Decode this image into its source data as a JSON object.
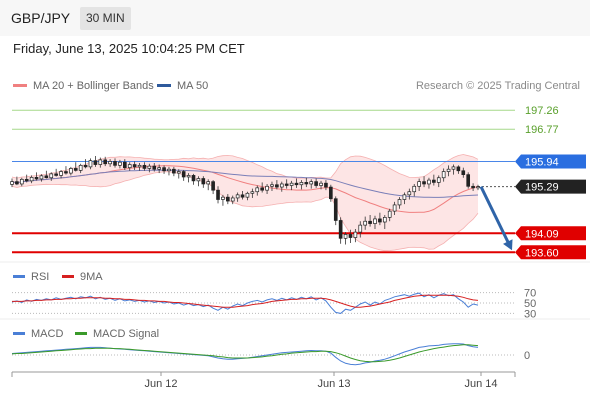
{
  "header": {
    "symbol": "GBP/JPY",
    "timeframe": "30 MIN"
  },
  "datetime": "Friday, June 13, 2025 10:04:25 PM CET",
  "research": "Research © 2025 Trading Central",
  "chart_data": [
    {
      "type": "candlestick",
      "legend": [
        {
          "name": "MA 20 + Bollinger Bands",
          "color": "#f08080"
        },
        {
          "name": "MA 50",
          "color": "#2e5a9c"
        }
      ],
      "y_range": [
        193.35,
        197.6
      ],
      "levels": [
        {
          "value": 197.26,
          "label": "197.26",
          "kind": "target",
          "color": "#5aa02c"
        },
        {
          "value": 196.77,
          "label": "196.77",
          "kind": "target",
          "color": "#5aa02c"
        },
        {
          "value": 195.94,
          "label": "195.94",
          "kind": "pivot",
          "color": "#2a6ee0"
        },
        {
          "value": 195.29,
          "label": "195.29",
          "kind": "last",
          "color": "#222222"
        },
        {
          "value": 194.09,
          "label": "194.09",
          "kind": "support",
          "color": "#e00000"
        },
        {
          "value": 193.6,
          "label": "193.60",
          "kind": "support",
          "color": "#e00000"
        }
      ],
      "x_ticks": [
        "Jun 12",
        "Jun 13",
        "Jun 14"
      ],
      "candles": [
        [
          195.35,
          195.5,
          195.28,
          195.42
        ],
        [
          195.42,
          195.55,
          195.33,
          195.36
        ],
        [
          195.36,
          195.52,
          195.3,
          195.48
        ],
        [
          195.48,
          195.6,
          195.4,
          195.44
        ],
        [
          195.44,
          195.58,
          195.38,
          195.53
        ],
        [
          195.53,
          195.66,
          195.45,
          195.49
        ],
        [
          195.49,
          195.61,
          195.42,
          195.57
        ],
        [
          195.57,
          195.7,
          195.5,
          195.52
        ],
        [
          195.52,
          195.66,
          195.44,
          195.62
        ],
        [
          195.62,
          195.75,
          195.55,
          195.58
        ],
        [
          195.58,
          195.72,
          195.5,
          195.68
        ],
        [
          195.68,
          195.82,
          195.6,
          195.64
        ],
        [
          195.64,
          195.8,
          195.58,
          195.76
        ],
        [
          195.76,
          195.92,
          195.68,
          195.71
        ],
        [
          195.71,
          195.88,
          195.64,
          195.84
        ],
        [
          195.84,
          196.0,
          195.76,
          195.8
        ],
        [
          195.8,
          196.02,
          195.74,
          195.96
        ],
        [
          195.96,
          196.08,
          195.8,
          195.86
        ],
        [
          195.86,
          196.04,
          195.78,
          195.98
        ],
        [
          195.98,
          196.06,
          195.82,
          195.88
        ],
        [
          195.88,
          196.0,
          195.8,
          195.94
        ],
        [
          195.94,
          196.02,
          195.78,
          195.84
        ],
        [
          195.84,
          195.98,
          195.76,
          195.92
        ],
        [
          195.92,
          196.0,
          195.72,
          195.78
        ],
        [
          195.78,
          195.92,
          195.7,
          195.86
        ],
        [
          195.86,
          195.94,
          195.72,
          195.8
        ],
        [
          195.8,
          195.9,
          195.7,
          195.84
        ],
        [
          195.84,
          195.92,
          195.7,
          195.76
        ],
        [
          195.76,
          195.88,
          195.66,
          195.82
        ],
        [
          195.82,
          195.9,
          195.68,
          195.74
        ],
        [
          195.74,
          195.86,
          195.64,
          195.78
        ],
        [
          195.78,
          195.84,
          195.62,
          195.7
        ],
        [
          195.7,
          195.8,
          195.58,
          195.74
        ],
        [
          195.74,
          195.8,
          195.56,
          195.64
        ],
        [
          195.64,
          195.74,
          195.5,
          195.68
        ],
        [
          195.68,
          195.72,
          195.44,
          195.54
        ],
        [
          195.54,
          195.64,
          195.4,
          195.58
        ],
        [
          195.58,
          195.62,
          195.34,
          195.44
        ],
        [
          195.44,
          195.56,
          195.3,
          195.5
        ],
        [
          195.5,
          195.56,
          195.26,
          195.36
        ],
        [
          195.36,
          195.48,
          195.2,
          195.42
        ],
        [
          195.42,
          195.46,
          195.1,
          195.2
        ],
        [
          195.2,
          195.3,
          194.86,
          194.96
        ],
        [
          194.96,
          195.08,
          194.8,
          195.02
        ],
        [
          195.02,
          195.1,
          194.84,
          194.92
        ],
        [
          194.92,
          195.06,
          194.84,
          195.0
        ],
        [
          195.0,
          195.14,
          194.9,
          195.08
        ],
        [
          195.08,
          195.18,
          194.96,
          195.02
        ],
        [
          195.02,
          195.16,
          194.94,
          195.12
        ],
        [
          195.12,
          195.24,
          195.0,
          195.16
        ],
        [
          195.16,
          195.32,
          195.06,
          195.26
        ],
        [
          195.26,
          195.4,
          195.14,
          195.2
        ],
        [
          195.2,
          195.36,
          195.1,
          195.3
        ],
        [
          195.3,
          195.42,
          195.18,
          195.34
        ],
        [
          195.34,
          195.46,
          195.22,
          195.28
        ],
        [
          195.28,
          195.42,
          195.16,
          195.36
        ],
        [
          195.36,
          195.48,
          195.24,
          195.32
        ],
        [
          195.32,
          195.44,
          195.2,
          195.38
        ],
        [
          195.38,
          195.5,
          195.26,
          195.34
        ],
        [
          195.34,
          195.46,
          195.22,
          195.4
        ],
        [
          195.4,
          195.52,
          195.28,
          195.36
        ],
        [
          195.36,
          195.48,
          195.24,
          195.42
        ],
        [
          195.42,
          195.5,
          195.26,
          195.32
        ],
        [
          195.32,
          195.44,
          195.22,
          195.38
        ],
        [
          195.38,
          195.46,
          195.2,
          195.28
        ],
        [
          195.28,
          195.34,
          194.9,
          194.98
        ],
        [
          194.98,
          195.04,
          194.3,
          194.42
        ],
        [
          194.42,
          194.5,
          193.82,
          193.96
        ],
        [
          193.96,
          194.12,
          193.8,
          194.06
        ],
        [
          194.06,
          194.18,
          193.84,
          193.98
        ],
        [
          193.98,
          194.2,
          193.86,
          194.12
        ],
        [
          194.12,
          194.4,
          193.98,
          194.3
        ],
        [
          194.3,
          194.52,
          194.18,
          194.4
        ],
        [
          194.4,
          194.56,
          194.26,
          194.34
        ],
        [
          194.34,
          194.54,
          194.2,
          194.46
        ],
        [
          194.46,
          194.62,
          194.3,
          194.38
        ],
        [
          194.38,
          194.56,
          194.2,
          194.5
        ],
        [
          194.5,
          194.72,
          194.4,
          194.66
        ],
        [
          194.66,
          194.9,
          194.56,
          194.82
        ],
        [
          194.82,
          195.02,
          194.72,
          194.96
        ],
        [
          194.96,
          195.14,
          194.84,
          195.08
        ],
        [
          195.08,
          195.24,
          194.96,
          195.16
        ],
        [
          195.16,
          195.36,
          195.04,
          195.3
        ],
        [
          195.3,
          195.5,
          195.18,
          195.42
        ],
        [
          195.42,
          195.56,
          195.28,
          195.36
        ],
        [
          195.36,
          195.52,
          195.24,
          195.46
        ],
        [
          195.46,
          195.6,
          195.32,
          195.4
        ],
        [
          195.4,
          195.58,
          195.28,
          195.52
        ],
        [
          195.52,
          195.76,
          195.42,
          195.68
        ],
        [
          195.68,
          195.84,
          195.56,
          195.74
        ],
        [
          195.74,
          195.86,
          195.6,
          195.8
        ],
        [
          195.8,
          195.84,
          195.62,
          195.7
        ],
        [
          195.7,
          195.78,
          195.52,
          195.6
        ],
        [
          195.6,
          195.66,
          195.24,
          195.3
        ],
        [
          195.3,
          195.38,
          195.18,
          195.26
        ],
        [
          195.26,
          195.34,
          195.2,
          195.29
        ]
      ],
      "forecast": {
        "from": 195.29,
        "to": 193.6
      }
    },
    {
      "type": "line",
      "legend": [
        {
          "name": "RSI",
          "color": "#4a7fd6"
        },
        {
          "name": "9MA",
          "color": "#d62020"
        }
      ],
      "y_range": [
        25,
        75
      ],
      "levels": [
        70,
        50,
        30
      ],
      "level_labels": [
        "70",
        "50",
        "30"
      ],
      "series": [
        {
          "name": "RSI",
          "values": [
            52,
            54,
            51,
            56,
            53,
            57,
            55,
            58,
            56,
            60,
            57,
            59,
            61,
            58,
            62,
            60,
            63,
            58,
            61,
            57,
            59,
            55,
            58,
            54,
            56,
            53,
            55,
            52,
            54,
            51,
            53,
            50,
            52,
            48,
            50,
            46,
            49,
            45,
            47,
            43,
            46,
            40,
            36,
            42,
            38,
            44,
            48,
            45,
            50,
            53,
            55,
            52,
            56,
            58,
            55,
            59,
            56,
            60,
            57,
            61,
            58,
            62,
            56,
            60,
            54,
            42,
            32,
            30,
            38,
            36,
            42,
            48,
            52,
            46,
            52,
            48,
            55,
            58,
            62,
            64,
            66,
            63,
            67,
            69,
            62,
            66,
            60,
            65,
            68,
            64,
            66,
            58,
            52,
            42,
            48,
            46
          ]
        },
        {
          "name": "9MA",
          "values": [
            53,
            53,
            53,
            54,
            54,
            55,
            55,
            56,
            56,
            57,
            57,
            58,
            58,
            59,
            59,
            60,
            60,
            60,
            60,
            59,
            59,
            58,
            58,
            57,
            57,
            56,
            55,
            55,
            54,
            54,
            53,
            53,
            52,
            51,
            51,
            50,
            49,
            48,
            47,
            46,
            45,
            44,
            43,
            42,
            42,
            42,
            43,
            44,
            45,
            47,
            48,
            49,
            51,
            53,
            54,
            55,
            56,
            57,
            57,
            58,
            58,
            59,
            59,
            59,
            58,
            56,
            53,
            50,
            47,
            44,
            42,
            42,
            43,
            44,
            46,
            48,
            50,
            52,
            55,
            57,
            59,
            61,
            63,
            64,
            65,
            65,
            65,
            65,
            65,
            65,
            64,
            63,
            61,
            58,
            56,
            55
          ]
        }
      ]
    },
    {
      "type": "line",
      "legend": [
        {
          "name": "MACD",
          "color": "#4a7fd6"
        },
        {
          "name": "MACD Signal",
          "color": "#3a9a2a"
        }
      ],
      "y_range": [
        -0.45,
        0.45
      ],
      "levels": [
        0
      ],
      "level_labels": [
        "0"
      ],
      "series": [
        {
          "name": "MACD",
          "values": [
            0.04,
            0.05,
            0.06,
            0.07,
            0.08,
            0.09,
            0.1,
            0.11,
            0.12,
            0.13,
            0.14,
            0.15,
            0.16,
            0.17,
            0.18,
            0.19,
            0.2,
            0.2,
            0.2,
            0.19,
            0.18,
            0.17,
            0.16,
            0.15,
            0.14,
            0.13,
            0.12,
            0.11,
            0.1,
            0.09,
            0.08,
            0.07,
            0.06,
            0.05,
            0.04,
            0.03,
            0.02,
            0.01,
            0.0,
            -0.01,
            -0.02,
            -0.05,
            -0.08,
            -0.1,
            -0.11,
            -0.11,
            -0.1,
            -0.09,
            -0.08,
            -0.06,
            -0.04,
            -0.02,
            0.0,
            0.02,
            0.04,
            0.06,
            0.07,
            0.08,
            0.09,
            0.1,
            0.11,
            0.12,
            0.11,
            0.11,
            0.1,
            0.05,
            -0.06,
            -0.16,
            -0.22,
            -0.25,
            -0.26,
            -0.24,
            -0.21,
            -0.19,
            -0.16,
            -0.14,
            -0.11,
            -0.07,
            -0.02,
            0.03,
            0.08,
            0.12,
            0.16,
            0.2,
            0.22,
            0.24,
            0.25,
            0.26,
            0.28,
            0.29,
            0.3,
            0.3,
            0.29,
            0.25,
            0.22,
            0.2
          ]
        },
        {
          "name": "MACD Signal",
          "values": [
            0.03,
            0.04,
            0.04,
            0.05,
            0.06,
            0.07,
            0.08,
            0.09,
            0.1,
            0.11,
            0.12,
            0.13,
            0.14,
            0.15,
            0.16,
            0.17,
            0.17,
            0.18,
            0.18,
            0.18,
            0.18,
            0.17,
            0.17,
            0.16,
            0.15,
            0.14,
            0.13,
            0.12,
            0.11,
            0.1,
            0.09,
            0.08,
            0.07,
            0.06,
            0.05,
            0.04,
            0.03,
            0.02,
            0.01,
            0.0,
            -0.01,
            -0.02,
            -0.04,
            -0.05,
            -0.07,
            -0.08,
            -0.08,
            -0.08,
            -0.08,
            -0.07,
            -0.06,
            -0.05,
            -0.03,
            -0.02,
            0.0,
            0.02,
            0.03,
            0.05,
            0.06,
            0.07,
            0.08,
            0.09,
            0.09,
            0.1,
            0.1,
            0.09,
            0.06,
            0.02,
            -0.03,
            -0.08,
            -0.12,
            -0.15,
            -0.17,
            -0.18,
            -0.18,
            -0.17,
            -0.16,
            -0.14,
            -0.11,
            -0.08,
            -0.04,
            0.0,
            0.04,
            0.08,
            0.11,
            0.14,
            0.17,
            0.19,
            0.21,
            0.23,
            0.25,
            0.26,
            0.27,
            0.27,
            0.26,
            0.25
          ]
        }
      ]
    }
  ]
}
